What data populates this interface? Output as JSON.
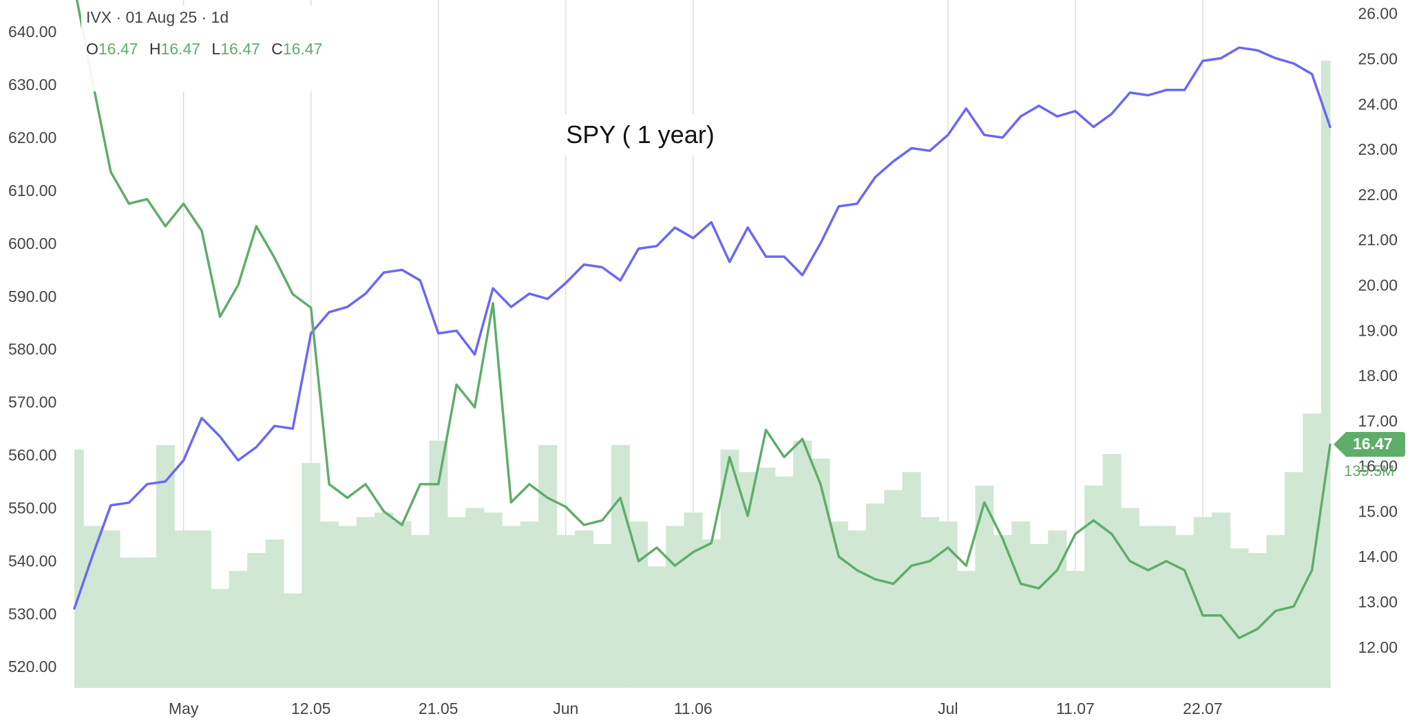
{
  "legend": {
    "header": "IVX · 01 Aug 25 · 1d",
    "ohlc": [
      {
        "key": "O",
        "value": "16.47"
      },
      {
        "key": "H",
        "value": "16.47"
      },
      {
        "key": "L",
        "value": "16.47"
      },
      {
        "key": "C",
        "value": "16.47"
      }
    ]
  },
  "last_value_badge": "16.47",
  "last_volume_label": "139.5M",
  "colors": {
    "spy_line": "#6a68f4",
    "ivx_line": "#5fad6a",
    "volume_bars": "#d0e7d3",
    "gridline": "#dddddd",
    "axis_text": "#444444"
  },
  "chart_data": {
    "type": "line",
    "title": "SPY ( 1 year)",
    "x_tick_labels": [
      "May",
      "12.05",
      "21.05",
      "Jun",
      "11.06",
      "Jul",
      "11.07",
      "22.07"
    ],
    "x_tick_index": [
      6,
      13,
      20,
      27,
      34,
      48,
      55,
      62
    ],
    "left_axis": {
      "ticks": [
        "640.00",
        "630.00",
        "620.00",
        "610.00",
        "600.00",
        "590.00",
        "580.00",
        "570.00",
        "560.00",
        "550.00",
        "540.00",
        "530.00",
        "520.00"
      ],
      "range": [
        516,
        646
      ]
    },
    "right_axis": {
      "ticks": [
        "26.00",
        "25.00",
        "24.00",
        "23.00",
        "22.00",
        "21.00",
        "20.00",
        "19.00",
        "18.00",
        "17.00",
        "16.00",
        "15.00",
        "14.00",
        "13.00",
        "12.00"
      ],
      "range": [
        11.1,
        26.3
      ]
    },
    "series": [
      {
        "axis": "left",
        "values": [
          531,
          541,
          550.5,
          551,
          554.5,
          555,
          559,
          567,
          563.5,
          559,
          561.5,
          565.5,
          565,
          583,
          587,
          588,
          590.5,
          594.5,
          595,
          593,
          583,
          583.5,
          579,
          591.5,
          588,
          590.5,
          589.5,
          592.5,
          596,
          595.5,
          593,
          599,
          599.5,
          603,
          601,
          604,
          596.5,
          603,
          597.5,
          597.5,
          594,
          600,
          607,
          607.5,
          612.5,
          615.5,
          618,
          617.5,
          620.5,
          625.5,
          620.5,
          620,
          624,
          626,
          624,
          625,
          622,
          624.5,
          628.5,
          628,
          629,
          629,
          634.5,
          635,
          637,
          636.5,
          635,
          634,
          632,
          622
        ]
      },
      {
        "axis": "right",
        "values": [
          26.6,
          24.5,
          22.5,
          21.8,
          21.9,
          21.3,
          21.8,
          21.2,
          19.3,
          20,
          21.3,
          20.6,
          19.8,
          19.5,
          15.6,
          15.3,
          15.6,
          15,
          14.7,
          15.6,
          15.6,
          17.8,
          17.3,
          19.6,
          15.2,
          15.6,
          15.3,
          15.1,
          14.7,
          14.8,
          15.3,
          13.9,
          14.2,
          13.8,
          14.1,
          14.3,
          16.2,
          14.9,
          16.8,
          16.2,
          16.6,
          15.6,
          14,
          13.7,
          13.5,
          13.4,
          13.8,
          13.9,
          14.2,
          13.8,
          15.2,
          14.4,
          13.4,
          13.3,
          13.7,
          14.5,
          14.8,
          14.5,
          13.9,
          13.7,
          13.9,
          13.7,
          12.7,
          12.7,
          12.2,
          12.4,
          12.8,
          12.9,
          13.7,
          16.47
        ]
      }
    ],
    "volume": {
      "axis_max": 153,
      "values": [
        53,
        36,
        35,
        29,
        29,
        54,
        35,
        35,
        22,
        26,
        30,
        33,
        21,
        50,
        37,
        36,
        38,
        39,
        37,
        34,
        55,
        38,
        40,
        39,
        36,
        37,
        54,
        34,
        35,
        32,
        54,
        37,
        27,
        36,
        39,
        33,
        53,
        48,
        49,
        47,
        55,
        51,
        37,
        35,
        41,
        44,
        48,
        38,
        37,
        26,
        45,
        34,
        37,
        32,
        35,
        26,
        45,
        52,
        40,
        36,
        36,
        34,
        38,
        39,
        31,
        30,
        34,
        48,
        61,
        139.5
      ]
    }
  }
}
